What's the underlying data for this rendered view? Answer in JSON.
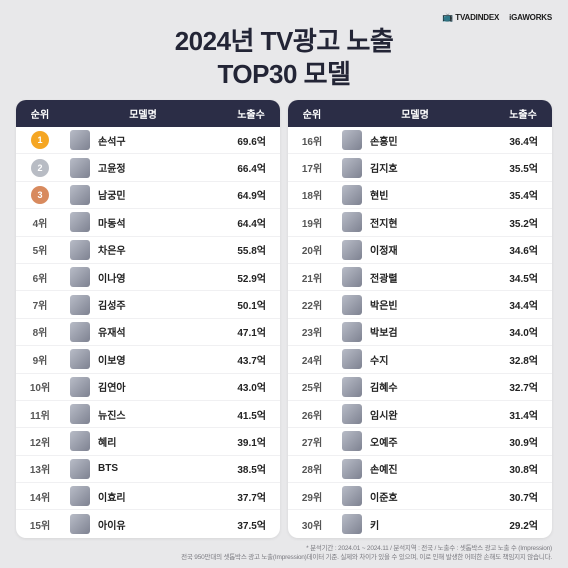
{
  "header": {
    "logo1": "TVADINDEX",
    "logo2": "iGAWORKS"
  },
  "title_line1": "2024년 TV광고 노출",
  "title_line2": "TOP30 모델",
  "columns": {
    "rank": "순위",
    "name": "모델명",
    "exposure": "노출수"
  },
  "medal_colors": {
    "1": "#f5a623",
    "2": "#b8bcc4",
    "3": "#d88a5e"
  },
  "left": [
    {
      "rank": "1",
      "medal": true,
      "name": "손석구",
      "exp": "69.6억"
    },
    {
      "rank": "2",
      "medal": true,
      "name": "고윤정",
      "exp": "66.4억"
    },
    {
      "rank": "3",
      "medal": true,
      "name": "남궁민",
      "exp": "64.9억"
    },
    {
      "rank": "4위",
      "medal": false,
      "name": "마동석",
      "exp": "64.4억"
    },
    {
      "rank": "5위",
      "medal": false,
      "name": "차은우",
      "exp": "55.8억"
    },
    {
      "rank": "6위",
      "medal": false,
      "name": "이나영",
      "exp": "52.9억"
    },
    {
      "rank": "7위",
      "medal": false,
      "name": "김성주",
      "exp": "50.1억"
    },
    {
      "rank": "8위",
      "medal": false,
      "name": "유재석",
      "exp": "47.1억"
    },
    {
      "rank": "9위",
      "medal": false,
      "name": "이보영",
      "exp": "43.7억"
    },
    {
      "rank": "10위",
      "medal": false,
      "name": "김연아",
      "exp": "43.0억"
    },
    {
      "rank": "11위",
      "medal": false,
      "name": "뉴진스",
      "exp": "41.5억"
    },
    {
      "rank": "12위",
      "medal": false,
      "name": "혜리",
      "exp": "39.1억"
    },
    {
      "rank": "13위",
      "medal": false,
      "name": "BTS",
      "exp": "38.5억"
    },
    {
      "rank": "14위",
      "medal": false,
      "name": "이효리",
      "exp": "37.7억"
    },
    {
      "rank": "15위",
      "medal": false,
      "name": "아이유",
      "exp": "37.5억"
    }
  ],
  "right": [
    {
      "rank": "16위",
      "name": "손흥민",
      "exp": "36.4억"
    },
    {
      "rank": "17위",
      "name": "김지호",
      "exp": "35.5억"
    },
    {
      "rank": "18위",
      "name": "현빈",
      "exp": "35.4억"
    },
    {
      "rank": "19위",
      "name": "전지현",
      "exp": "35.2억"
    },
    {
      "rank": "20위",
      "name": "이정재",
      "exp": "34.6억"
    },
    {
      "rank": "21위",
      "name": "전광렬",
      "exp": "34.5억"
    },
    {
      "rank": "22위",
      "name": "박은빈",
      "exp": "34.4억"
    },
    {
      "rank": "23위",
      "name": "박보검",
      "exp": "34.0억"
    },
    {
      "rank": "24위",
      "name": "수지",
      "exp": "32.8억"
    },
    {
      "rank": "25위",
      "name": "김혜수",
      "exp": "32.7억"
    },
    {
      "rank": "26위",
      "name": "임시완",
      "exp": "31.4억"
    },
    {
      "rank": "27위",
      "name": "오예주",
      "exp": "30.9억"
    },
    {
      "rank": "28위",
      "name": "손예진",
      "exp": "30.8억"
    },
    {
      "rank": "29위",
      "name": "이준호",
      "exp": "30.7억"
    },
    {
      "rank": "30위",
      "name": "키",
      "exp": "29.2억"
    }
  ],
  "footer1": "* 분석기간 : 2024.01 ~ 2024.11 / 분석지역 : 전국 / 노출수 : 셋톱박스 광고 노출 수 (Impression)",
  "footer2": "전국 950만대의 셋톱박스 광고 노출(Impression)데이터 기준. 실제와 차이가 있을 수 있으며, 이로 인해 발생한 어떠한 손해도 책임지지 않습니다."
}
